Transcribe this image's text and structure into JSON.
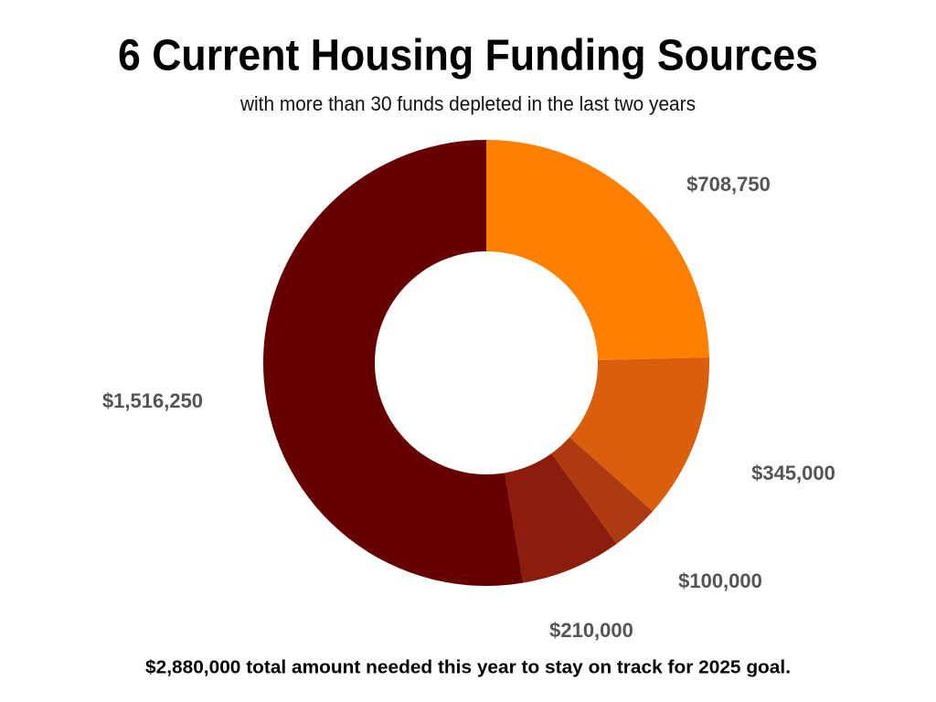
{
  "chart_data": {
    "type": "donut",
    "title": "6 Current Housing Funding Sources",
    "subtitle": "with more than 30 funds depleted in the last two years",
    "values": [
      708750,
      345000,
      100000,
      210000,
      1516250
    ],
    "value_labels": [
      "$708,750",
      "$345,000",
      "$100,000",
      "$210,000",
      "$1,516,250"
    ],
    "colors": [
      "#ff8000",
      "#d95f0e",
      "#ae3b10",
      "#8c1d0c",
      "#660000"
    ],
    "footer": "$2,880,000 total amount needed this year to stay on track for 2025 goal."
  }
}
